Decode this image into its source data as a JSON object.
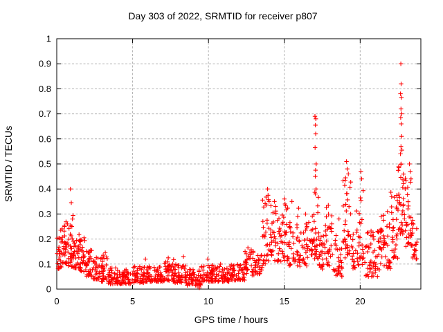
{
  "chart_data": {
    "type": "scatter",
    "title": "Day 303 of 2022, SRMTID for receiver p807",
    "xlabel": "GPS time / hours",
    "ylabel": "SRMTID / TECUs",
    "xlim": [
      0,
      24
    ],
    "ylim": [
      0,
      1
    ],
    "grid": true,
    "legend": "none",
    "grid_color": "#b0b0b0",
    "border_color": "#000000",
    "marker": {
      "glyph": "+",
      "color": "#ff0000",
      "arm": 3.2,
      "stroke_width": 1.1
    },
    "xticks": {
      "values": [
        0,
        5,
        10,
        15,
        20
      ],
      "labels": [
        "0",
        "5",
        "10",
        "15",
        "20"
      ]
    },
    "yticks": {
      "values": [
        0,
        0.1,
        0.2,
        0.3,
        0.4,
        0.5,
        0.6,
        0.7,
        0.8,
        0.9,
        1
      ],
      "labels": [
        "0",
        "0.1",
        "0.2",
        "0.3",
        "0.4",
        "0.5",
        "0.6",
        "0.7",
        "0.8",
        "0.9",
        "1"
      ]
    },
    "seed": 11,
    "skew": 1.5,
    "band_profile": [
      [
        0.0,
        0.35,
        0.08,
        0.24,
        25
      ],
      [
        0.35,
        0.75,
        0.1,
        0.27,
        30
      ],
      [
        0.75,
        1.1,
        0.09,
        0.3,
        30
      ],
      [
        1.1,
        1.5,
        0.08,
        0.22,
        28
      ],
      [
        1.5,
        1.95,
        0.07,
        0.21,
        30
      ],
      [
        1.95,
        2.4,
        0.05,
        0.16,
        28
      ],
      [
        2.4,
        2.9,
        0.04,
        0.13,
        30
      ],
      [
        2.9,
        3.4,
        0.03,
        0.14,
        30
      ],
      [
        3.4,
        4.0,
        0.02,
        0.09,
        35
      ],
      [
        4.0,
        5.0,
        0.02,
        0.08,
        55
      ],
      [
        5.0,
        6.0,
        0.025,
        0.09,
        55
      ],
      [
        6.0,
        7.0,
        0.03,
        0.09,
        55
      ],
      [
        7.0,
        7.8,
        0.03,
        0.11,
        45
      ],
      [
        7.8,
        8.6,
        0.025,
        0.1,
        45
      ],
      [
        8.6,
        9.5,
        0.015,
        0.08,
        50
      ],
      [
        9.5,
        10.3,
        0.03,
        0.1,
        45
      ],
      [
        10.3,
        11.4,
        0.03,
        0.09,
        55
      ],
      [
        11.4,
        12.4,
        0.035,
        0.1,
        50
      ],
      [
        12.4,
        13.0,
        0.05,
        0.16,
        30
      ],
      [
        13.0,
        13.55,
        0.06,
        0.15,
        28
      ],
      [
        13.55,
        14.15,
        0.1,
        0.37,
        35
      ],
      [
        14.15,
        14.7,
        0.11,
        0.32,
        30
      ],
      [
        14.7,
        15.25,
        0.11,
        0.36,
        30
      ],
      [
        15.25,
        15.95,
        0.09,
        0.34,
        35
      ],
      [
        15.95,
        16.6,
        0.09,
        0.27,
        32
      ],
      [
        16.6,
        17.0,
        0.11,
        0.3,
        22
      ],
      [
        17.0,
        17.25,
        0.12,
        0.45,
        18
      ],
      [
        17.25,
        17.75,
        0.08,
        0.26,
        28
      ],
      [
        17.75,
        18.15,
        0.09,
        0.33,
        24
      ],
      [
        18.15,
        18.8,
        0.05,
        0.22,
        32
      ],
      [
        18.8,
        19.45,
        0.12,
        0.46,
        38
      ],
      [
        19.45,
        19.75,
        0.08,
        0.22,
        16
      ],
      [
        19.75,
        20.25,
        0.09,
        0.42,
        28
      ],
      [
        20.25,
        21.3,
        0.05,
        0.24,
        55
      ],
      [
        21.3,
        22.0,
        0.08,
        0.3,
        40
      ],
      [
        22.0,
        22.5,
        0.12,
        0.4,
        32
      ],
      [
        22.5,
        22.9,
        0.22,
        0.5,
        30
      ],
      [
        22.9,
        23.4,
        0.17,
        0.46,
        35
      ],
      [
        23.4,
        23.75,
        0.12,
        0.28,
        20
      ]
    ],
    "spikes": [
      [
        0.9,
        0.4
      ],
      [
        0.96,
        0.345
      ],
      [
        1.8,
        0.205
      ],
      [
        3.2,
        0.145
      ],
      [
        5.85,
        0.12
      ],
      [
        7.35,
        0.125
      ],
      [
        7.7,
        0.118
      ],
      [
        8.35,
        0.13
      ],
      [
        9.4,
        0.005
      ],
      [
        9.95,
        0.12
      ],
      [
        10.8,
        0.1
      ],
      [
        12.6,
        0.165
      ],
      [
        13.9,
        0.4
      ],
      [
        13.93,
        0.375
      ],
      [
        14.0,
        0.35
      ],
      [
        14.35,
        0.35
      ],
      [
        14.42,
        0.33
      ],
      [
        15.0,
        0.36
      ],
      [
        15.05,
        0.34
      ],
      [
        15.5,
        0.35
      ],
      [
        16.4,
        0.3
      ],
      [
        17.02,
        0.69
      ],
      [
        17.08,
        0.68
      ],
      [
        17.05,
        0.655
      ],
      [
        17.07,
        0.62
      ],
      [
        17.03,
        0.565
      ],
      [
        17.1,
        0.5
      ],
      [
        17.06,
        0.475
      ],
      [
        17.04,
        0.45
      ],
      [
        17.09,
        0.4
      ],
      [
        17.05,
        0.38
      ],
      [
        17.9,
        0.335
      ],
      [
        18.6,
        0.28
      ],
      [
        19.1,
        0.51
      ],
      [
        19.15,
        0.48
      ],
      [
        19.22,
        0.46
      ],
      [
        20.05,
        0.47
      ],
      [
        20.1,
        0.44
      ],
      [
        21.8,
        0.31
      ],
      [
        22.68,
        0.9
      ],
      [
        22.7,
        0.82
      ],
      [
        22.66,
        0.78
      ],
      [
        22.72,
        0.765
      ],
      [
        22.69,
        0.72
      ],
      [
        22.74,
        0.7
      ],
      [
        22.67,
        0.685
      ],
      [
        22.71,
        0.66
      ],
      [
        22.73,
        0.61
      ],
      [
        22.69,
        0.57
      ],
      [
        22.75,
        0.555
      ],
      [
        22.66,
        0.54
      ],
      [
        22.7,
        0.5
      ],
      [
        23.25,
        0.5
      ],
      [
        23.3,
        0.47
      ],
      [
        23.35,
        0.44
      ]
    ]
  }
}
